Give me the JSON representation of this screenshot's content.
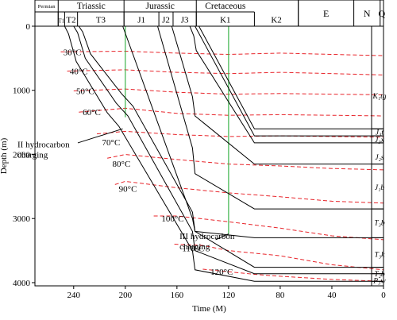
{
  "chart_data": {
    "type": "line",
    "xlabel": "Time (M)",
    "ylabel": "Depth (m)",
    "xlim": [
      270,
      0
    ],
    "ylim": [
      0,
      4050
    ],
    "x_ticks": [
      240,
      200,
      160,
      120,
      80,
      40,
      0
    ],
    "y_ticks": [
      0,
      1000,
      2000,
      3000,
      4000
    ],
    "periods": [
      {
        "label": "Permian",
        "start": 270,
        "end": 252
      },
      {
        "label": "Triassic",
        "start": 252,
        "end": 201
      },
      {
        "label": "Jurassic",
        "start": 201,
        "end": 145
      },
      {
        "label": "Cretaceous",
        "start": 145,
        "end": 100
      },
      {
        "label": "E",
        "start": 66,
        "end": 23
      },
      {
        "label": "N",
        "start": 23,
        "end": 2.6
      },
      {
        "label": "Q",
        "start": 2.6,
        "end": 0
      }
    ],
    "epochs": [
      {
        "label": "T1",
        "start": 252,
        "end": 247
      },
      {
        "label": "T2",
        "start": 247,
        "end": 237
      },
      {
        "label": "T3",
        "start": 237,
        "end": 201
      },
      {
        "label": "J1",
        "start": 201,
        "end": 174
      },
      {
        "label": "J2",
        "start": 174,
        "end": 163
      },
      {
        "label": "J3",
        "start": 163,
        "end": 145
      },
      {
        "label": "K1",
        "start": 145,
        "end": 100
      },
      {
        "label": "K2",
        "start": 100,
        "end": 66
      }
    ],
    "formations": [
      {
        "label": "K₁tg",
        "depth": 1080
      },
      {
        "label": "J₃t",
        "depth": 1640
      },
      {
        "label": "J₃x",
        "depth": 1760
      },
      {
        "label": "J₂s",
        "depth": 2030
      },
      {
        "label": "J₁b",
        "depth": 2500
      },
      {
        "label": "T₃b",
        "depth": 3050
      },
      {
        "label": "T₃k",
        "depth": 3550
      },
      {
        "label": "T₂b",
        "depth": 3850
      },
      {
        "label": "P₃w",
        "depth": 3960
      }
    ],
    "burial_curves": [
      {
        "x": [
          247,
          244,
          238,
          214,
          205,
          148,
          146,
          100,
          0
        ],
        "y": [
          0,
          120,
          550,
          1350,
          1560,
          3500,
          3800,
          3980,
          3980
        ]
      },
      {
        "x": [
          240,
          237,
          231,
          207,
          198,
          148,
          146,
          100,
          0
        ],
        "y": [
          0,
          100,
          500,
          1200,
          1400,
          3200,
          3500,
          3860,
          3860
        ]
      },
      {
        "x": [
          236,
          233,
          227,
          203,
          194,
          148,
          146,
          100,
          0
        ],
        "y": [
          0,
          90,
          430,
          1050,
          1250,
          2900,
          3200,
          3760,
          3760
        ]
      },
      {
        "x": [
          202,
          148,
          146,
          100,
          0
        ],
        "y": [
          0,
          3000,
          3200,
          3300,
          3300
        ]
      },
      {
        "x": [
          175,
          148,
          146,
          100,
          0
        ],
        "y": [
          0,
          1900,
          2300,
          2850,
          2850
        ]
      },
      {
        "x": [
          164,
          148,
          146,
          100,
          0
        ],
        "y": [
          0,
          1100,
          1400,
          2150,
          2150
        ]
      },
      {
        "x": [
          150,
          147,
          145,
          100,
          0
        ],
        "y": [
          0,
          150,
          380,
          1820,
          1820
        ]
      },
      {
        "x": [
          146,
          100,
          0
        ],
        "y": [
          0,
          1710,
          1710
        ]
      },
      {
        "x": [
          143,
          100,
          0
        ],
        "y": [
          0,
          1600,
          1600
        ]
      }
    ],
    "isotherms": [
      {
        "name": "30°C",
        "x": [
          250,
          200,
          160,
          120,
          80,
          40,
          0
        ],
        "y": [
          400,
          390,
          420,
          440,
          420,
          440,
          460
        ]
      },
      {
        "name": "40°C",
        "x": [
          245,
          200,
          160,
          120,
          80,
          40,
          0
        ],
        "y": [
          700,
          680,
          720,
          740,
          720,
          740,
          760
        ]
      },
      {
        "name": "50°C",
        "x": [
          240,
          200,
          160,
          120,
          80,
          40,
          0
        ],
        "y": [
          1010,
          980,
          1030,
          1060,
          1050,
          1060,
          1070
        ]
      },
      {
        "name": "60°C",
        "x": [
          236,
          200,
          160,
          120,
          80,
          40,
          0
        ],
        "y": [
          1340,
          1280,
          1360,
          1390,
          1380,
          1390,
          1400
        ]
      },
      {
        "name": "70°C",
        "x": [
          222,
          200,
          160,
          120,
          80,
          40,
          0
        ],
        "y": [
          1680,
          1640,
          1690,
          1720,
          1710,
          1720,
          1730
        ]
      },
      {
        "name": "80°C",
        "x": [
          214,
          200,
          160,
          120,
          80,
          40,
          0
        ],
        "y": [
          2060,
          2000,
          2080,
          2150,
          2180,
          2220,
          2240
        ]
      },
      {
        "name": "90°C",
        "x": [
          208,
          200,
          160,
          120,
          80,
          40,
          0
        ],
        "y": [
          2470,
          2420,
          2520,
          2600,
          2660,
          2730,
          2760
        ]
      },
      {
        "name": "100°C",
        "x": [
          178,
          160,
          120,
          80,
          40,
          0
        ],
        "y": [
          2960,
          2960,
          3050,
          3150,
          3270,
          3330
        ]
      },
      {
        "name": "110°C",
        "x": [
          162,
          140,
          120,
          80,
          40,
          0
        ],
        "y": [
          3400,
          3420,
          3500,
          3580,
          3720,
          3800
        ]
      },
      {
        "name": "120°C",
        "x": [
          140,
          120,
          100,
          80,
          40,
          0
        ],
        "y": [
          3790,
          3830,
          3870,
          3900,
          3950,
          3980
        ]
      }
    ],
    "charging_events": [
      {
        "label": "II hydrocarbon charging",
        "time": 200
      },
      {
        "label": "III hydrocarbon charging",
        "time": 120
      }
    ]
  }
}
